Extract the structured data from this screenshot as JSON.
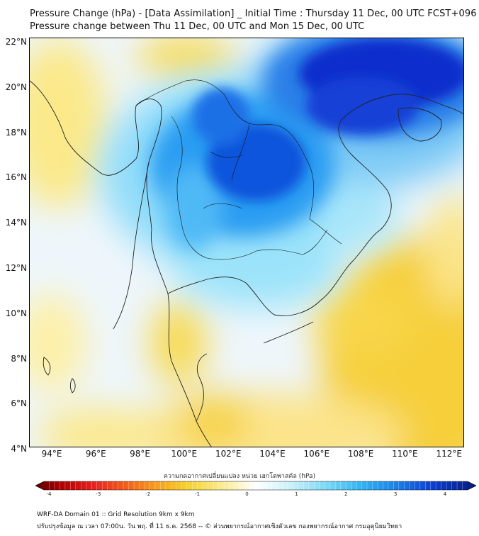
{
  "title": {
    "line1": "Pressure Change (hPa) - [Data Assimilation] _ Initial Time : Thursday 11 Dec, 00 UTC FCST+096",
    "line2": "Pressure change between Thu 11 Dec, 00 UTC and Mon 15 Dec, 00 UTC"
  },
  "axes": {
    "lat_labels": [
      "22°N",
      "20°N",
      "18°N",
      "16°N",
      "14°N",
      "12°N",
      "10°N",
      "8°N",
      "6°N",
      "4°N"
    ],
    "lon_labels": [
      "94°E",
      "96°E",
      "98°E",
      "100°E",
      "102°E",
      "104°E",
      "106°E",
      "108°E",
      "110°E",
      "112°E"
    ]
  },
  "colorbar": {
    "title": "ความกดอากาศเปลี่ยนแปลง หน่วย เฮกโตพาสคัล (hPa)",
    "ticks": [
      "-4",
      "-3",
      "-2",
      "-1",
      "0",
      "1",
      "2",
      "3",
      "4"
    ],
    "range": [
      -4,
      4
    ]
  },
  "footer": {
    "line1": "WRF-DA Domain 01 :: Grid Resolution 9km x 9km",
    "line2": "ปรับปรุงข้อมูล ณ เวลา 07:00น. วัน พฤ. ที่ 11 ธ.ค. 2568 -- © ส่วนพยากรณ์อากาศเชิงตัวเลข กองพยากรณ์อากาศ กรมอุตุนิยมวิทยา"
  },
  "colors": {
    "pos_strong": "#0a2fc8",
    "pos_mid": "#1f8ff0",
    "pos_light": "#8fe0fa",
    "neutral": "#f4f8fc",
    "neg_light": "#fdf2a0",
    "neg_mid": "#f5c21a",
    "coast": "#222222"
  }
}
